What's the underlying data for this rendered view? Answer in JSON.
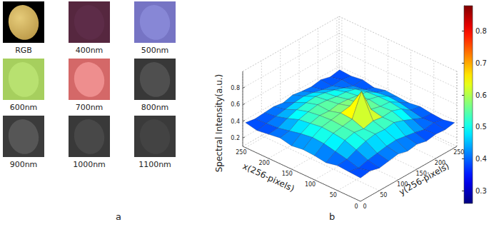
{
  "panel_labels": [
    "a",
    "b"
  ],
  "images": [
    "RGB",
    "400nm",
    "500nm",
    "600nm",
    "700nm",
    "800nm",
    "900nm",
    "1000nm",
    "1100nm"
  ],
  "chart_data": {
    "type": "surface",
    "xlabel": "x(256-pixels)",
    "ylabel": "y(256-pixels)",
    "zlabel": "Spectral Intensity(a.u.)",
    "x": [
      0,
      25,
      50,
      75,
      100,
      125,
      150,
      175,
      200,
      225,
      250
    ],
    "y": [
      0,
      25,
      50,
      75,
      100,
      125,
      150,
      175,
      200,
      225,
      250
    ],
    "z": [
      [
        0.38,
        0.4,
        0.37,
        0.39,
        0.41,
        0.38,
        0.4,
        0.37,
        0.39,
        0.38,
        0.4
      ],
      [
        0.39,
        0.37,
        0.4,
        0.42,
        0.44,
        0.45,
        0.43,
        0.41,
        0.38,
        0.4,
        0.37
      ],
      [
        0.4,
        0.41,
        0.46,
        0.5,
        0.52,
        0.51,
        0.53,
        0.49,
        0.44,
        0.39,
        0.38
      ],
      [
        0.37,
        0.44,
        0.51,
        0.54,
        0.52,
        0.55,
        0.53,
        0.54,
        0.5,
        0.42,
        0.4
      ],
      [
        0.39,
        0.47,
        0.53,
        0.55,
        0.57,
        0.84,
        0.56,
        0.53,
        0.52,
        0.45,
        0.38
      ],
      [
        0.4,
        0.48,
        0.54,
        0.56,
        0.58,
        0.6,
        0.57,
        0.55,
        0.52,
        0.46,
        0.39
      ],
      [
        0.38,
        0.46,
        0.52,
        0.55,
        0.54,
        0.56,
        0.55,
        0.53,
        0.51,
        0.44,
        0.4
      ],
      [
        0.41,
        0.43,
        0.5,
        0.53,
        0.55,
        0.54,
        0.52,
        0.51,
        0.48,
        0.41,
        0.37
      ],
      [
        0.39,
        0.4,
        0.45,
        0.49,
        0.51,
        0.52,
        0.5,
        0.47,
        0.43,
        0.39,
        0.4
      ],
      [
        0.37,
        0.39,
        0.41,
        0.43,
        0.45,
        0.46,
        0.44,
        0.41,
        0.39,
        0.4,
        0.38
      ],
      [
        0.4,
        0.38,
        0.39,
        0.4,
        0.38,
        0.41,
        0.39,
        0.38,
        0.4,
        0.37,
        0.39
      ]
    ],
    "xlim": [
      0,
      256
    ],
    "xticks": [
      0,
      50,
      100,
      150,
      200,
      250
    ],
    "ylim": [
      0,
      256
    ],
    "yticks": [
      0,
      50,
      100,
      150,
      200,
      250
    ],
    "zlim": [
      0.1,
      1
    ],
    "zticks": [
      0.2,
      0.4,
      0.6,
      0.8
    ],
    "colorbar": {
      "range": [
        0.26,
        0.88
      ],
      "ticks": [
        0.3,
        0.4,
        0.5,
        0.6,
        0.7,
        0.8
      ]
    },
    "grid": true
  }
}
